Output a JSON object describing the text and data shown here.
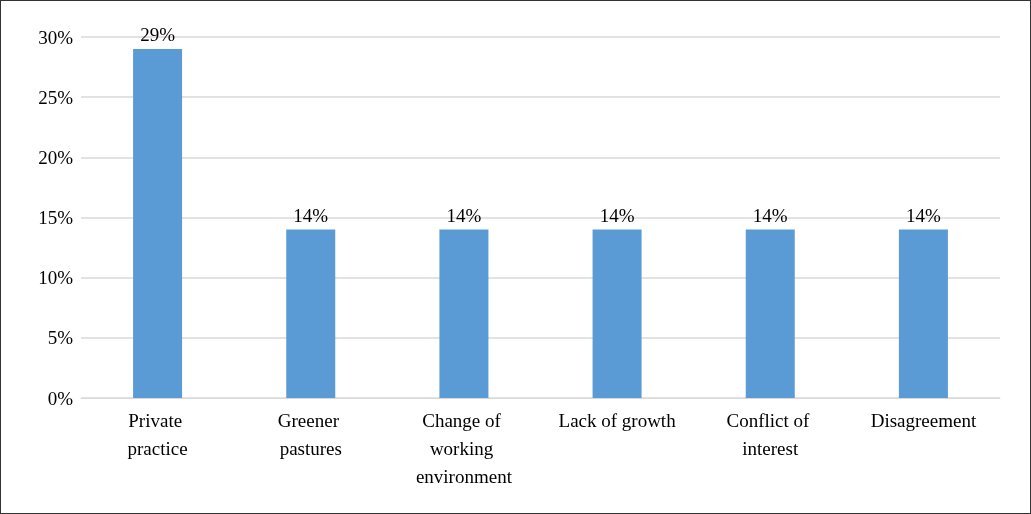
{
  "chart_data": {
    "type": "bar",
    "categories": [
      "Private practice",
      "Greener pastures",
      "Change of working environment",
      "Lack of growth",
      "Conflict of interest",
      "Disagreement"
    ],
    "values": [
      29,
      14,
      14,
      14,
      14,
      14
    ],
    "value_labels": [
      "29%",
      "14%",
      "14%",
      "14%",
      "14%",
      "14%"
    ],
    "color": "#5b9bd5",
    "ylim": [
      0,
      30
    ],
    "yticks": [
      {
        "value": 0,
        "label": "0%"
      },
      {
        "value": 5,
        "label": "5%"
      },
      {
        "value": 10,
        "label": "10%"
      },
      {
        "value": 15,
        "label": "15%"
      },
      {
        "value": 20,
        "label": "20%"
      },
      {
        "value": 25,
        "label": "25%"
      },
      {
        "value": 30,
        "label": "30%"
      }
    ],
    "grid": "y"
  }
}
